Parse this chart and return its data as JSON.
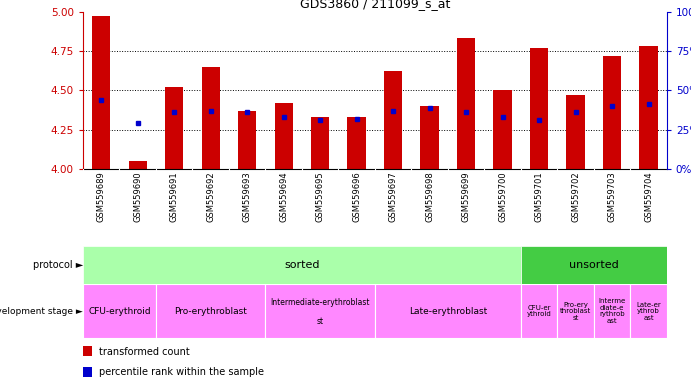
{
  "title": "GDS3860 / 211099_s_at",
  "samples": [
    "GSM559689",
    "GSM559690",
    "GSM559691",
    "GSM559692",
    "GSM559693",
    "GSM559694",
    "GSM559695",
    "GSM559696",
    "GSM559697",
    "GSM559698",
    "GSM559699",
    "GSM559700",
    "GSM559701",
    "GSM559702",
    "GSM559703",
    "GSM559704"
  ],
  "bar_values": [
    4.97,
    4.05,
    4.52,
    4.65,
    4.37,
    4.42,
    4.33,
    4.33,
    4.62,
    4.4,
    4.83,
    4.5,
    4.77,
    4.47,
    4.72,
    4.78
  ],
  "percentile_vals": [
    4.44,
    4.29,
    4.36,
    4.37,
    4.36,
    4.33,
    4.31,
    4.32,
    4.37,
    4.39,
    4.36,
    4.33,
    4.31,
    4.36,
    4.4,
    4.41
  ],
  "ymin": 4.0,
  "ymax": 5.0,
  "bar_color": "#cc0000",
  "marker_color": "#0000cc",
  "bg_color": "#ffffff",
  "tick_color_left": "#cc0000",
  "tick_color_right": "#0000cc",
  "protocol_sorted_color": "#aaffaa",
  "protocol_unsorted_color": "#44cc44",
  "dev_stage_color": "#ff88ff",
  "xticklabel_bg": "#cccccc",
  "sorted_count": 12,
  "unsorted_count": 4,
  "dev_stages": [
    {
      "label": "CFU-erythroid",
      "start": 0,
      "end": 2,
      "small": false
    },
    {
      "label": "Pro-erythroblast",
      "start": 2,
      "end": 5,
      "small": false
    },
    {
      "label": "Intermediate-erythroblast\nst",
      "start": 5,
      "end": 8,
      "small": false
    },
    {
      "label": "Late-erythroblast",
      "start": 8,
      "end": 12,
      "small": false
    },
    {
      "label": "CFU-er\nythroid",
      "start": 12,
      "end": 13,
      "small": true
    },
    {
      "label": "Pro-ery\nthroblast\nst",
      "start": 13,
      "end": 14,
      "small": true
    },
    {
      "label": "Interme\ndiate-e\nrythrob\nast",
      "start": 14,
      "end": 15,
      "small": true
    },
    {
      "label": "Late-er\nythrob\nast",
      "start": 15,
      "end": 16,
      "small": true
    }
  ],
  "legend": [
    {
      "color": "#cc0000",
      "label": "transformed count"
    },
    {
      "color": "#0000cc",
      "label": "percentile rank within the sample"
    }
  ]
}
